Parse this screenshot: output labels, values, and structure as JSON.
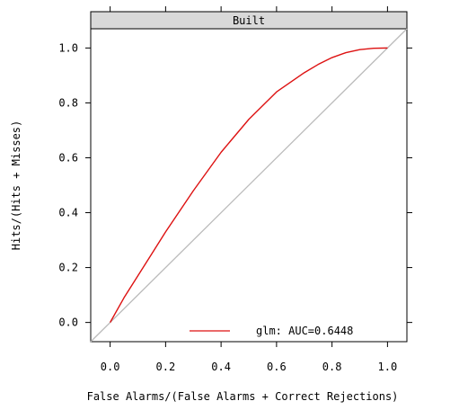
{
  "chart_data": {
    "type": "line",
    "panel_title": "Built",
    "xlabel": "False Alarms/(False Alarms + Correct Rejections)",
    "ylabel": "Hits/(Hits + Misses)",
    "xlim": [
      -0.07,
      1.07
    ],
    "ylim": [
      -0.07,
      1.07
    ],
    "x_ticks": [
      0.0,
      0.2,
      0.4,
      0.6,
      0.8,
      1.0
    ],
    "x_tick_labels": [
      "0.0",
      "0.2",
      "0.4",
      "0.6",
      "0.8",
      "1.0"
    ],
    "y_ticks": [
      0.0,
      0.2,
      0.4,
      0.6,
      0.8,
      1.0
    ],
    "y_tick_labels": [
      "0.0",
      "0.2",
      "0.4",
      "0.6",
      "0.8",
      "1.0"
    ],
    "grid": false,
    "legend_position": "bottom-right",
    "series": [
      {
        "name": "glm: AUC=0.6448",
        "color": "#dd1111",
        "x": [
          0.0,
          0.05,
          0.1,
          0.15,
          0.2,
          0.3,
          0.4,
          0.5,
          0.6,
          0.7,
          0.75,
          0.8,
          0.85,
          0.9,
          0.95,
          1.0
        ],
        "y": [
          0.0,
          0.09,
          0.17,
          0.25,
          0.33,
          0.48,
          0.62,
          0.74,
          0.84,
          0.91,
          0.94,
          0.965,
          0.983,
          0.994,
          0.999,
          1.0
        ]
      }
    ],
    "reference_line": {
      "x": [
        -0.07,
        1.07
      ],
      "y": [
        -0.07,
        1.07
      ],
      "color": "#bbbbbb"
    }
  }
}
